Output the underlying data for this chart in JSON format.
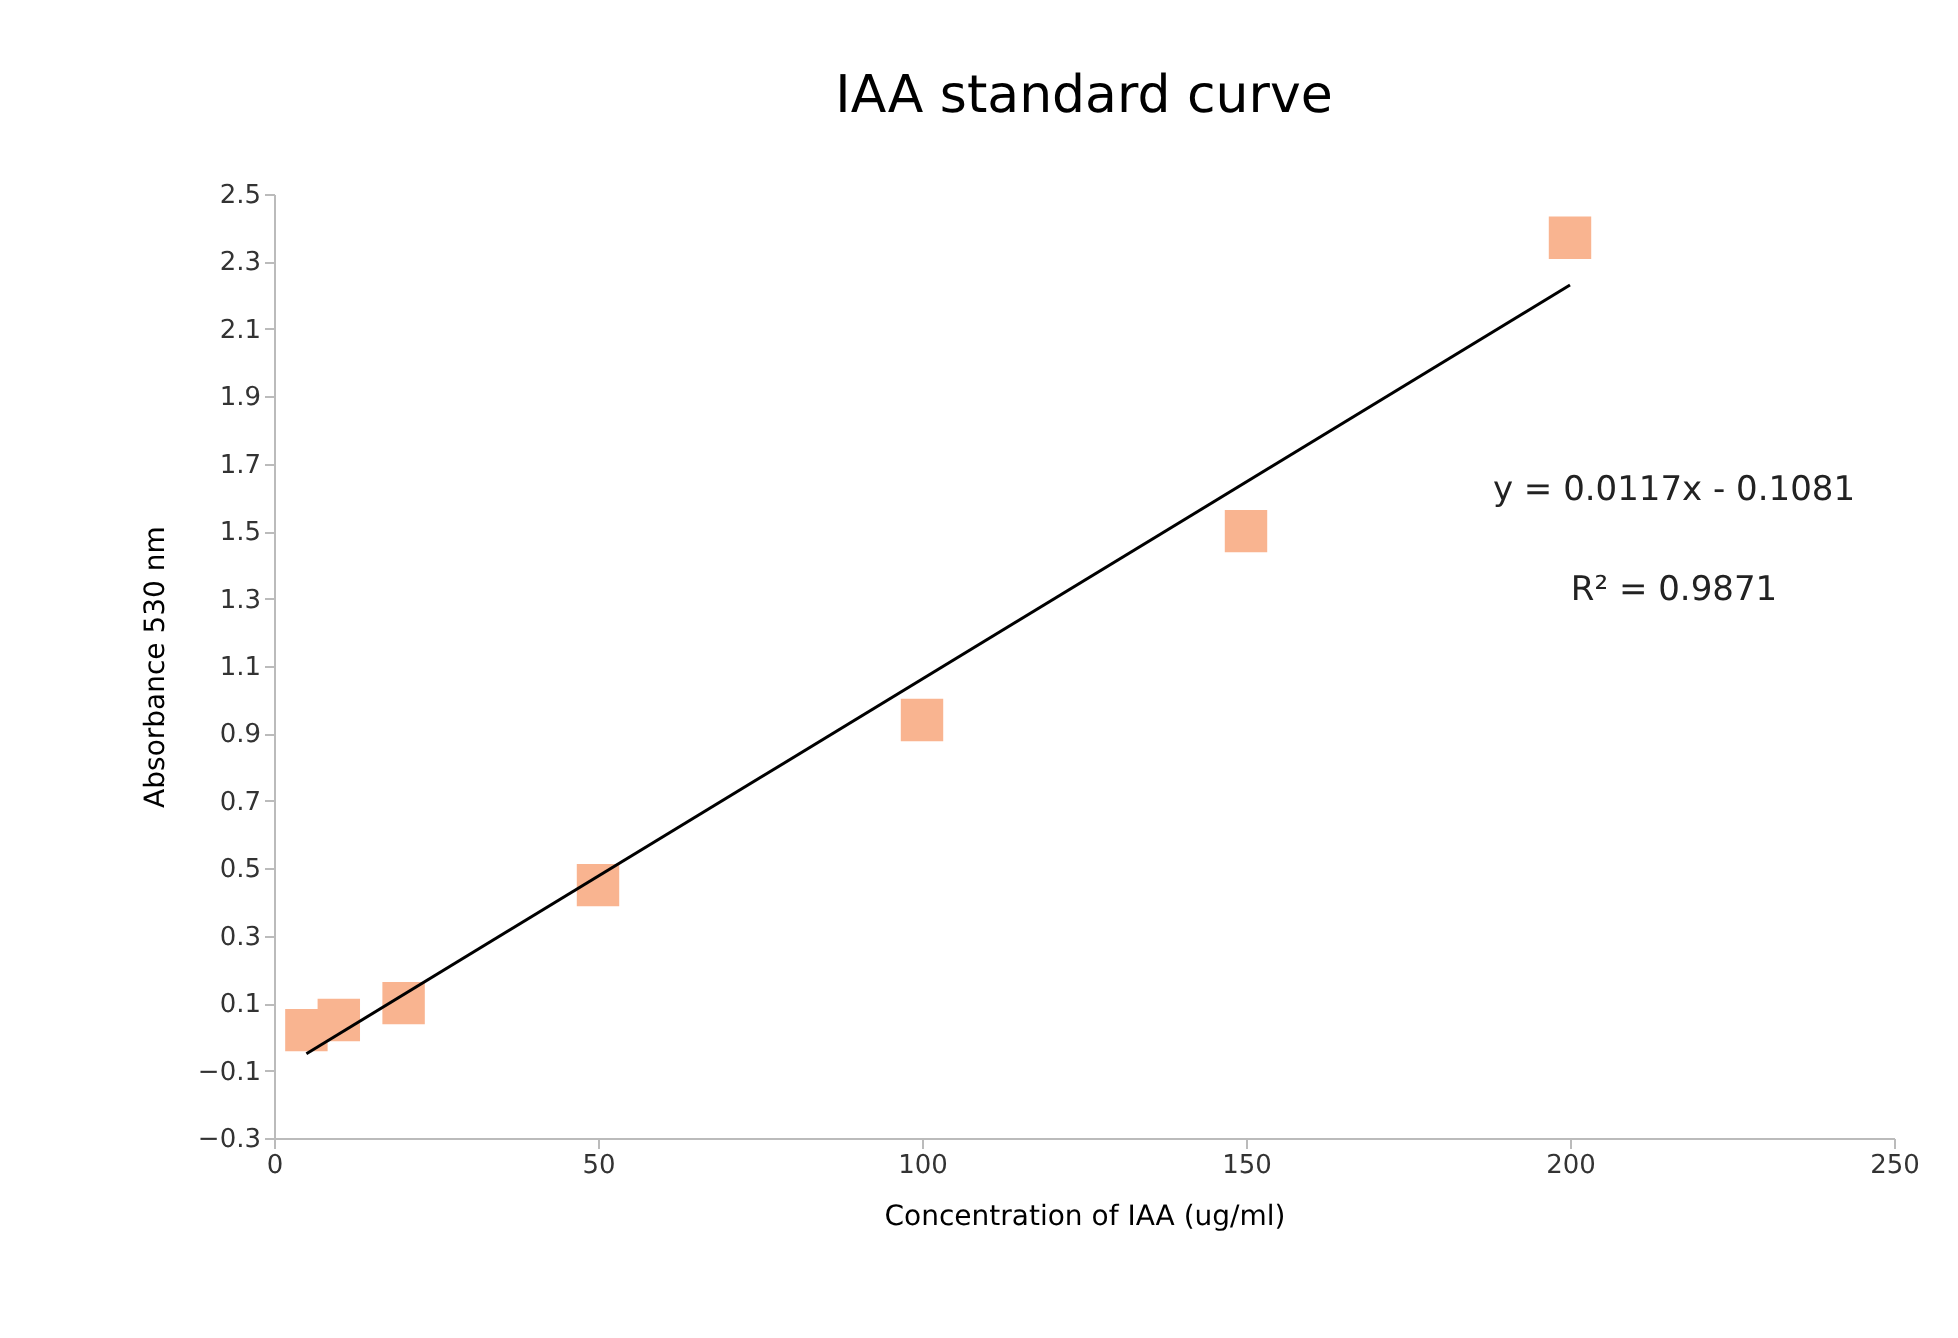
{
  "chart_data": {
    "type": "scatter",
    "title": "IAA standard curve",
    "xlabel": "Concentration of IAA (ug/ml)",
    "ylabel": "Absorbance 530 nm",
    "xlim": [
      0,
      250
    ],
    "xticks": [
      0,
      50,
      100,
      150,
      200,
      250
    ],
    "ylim": [
      -0.3,
      2.5
    ],
    "yticks": [
      -0.3,
      -0.1,
      0.1,
      0.3,
      0.5,
      0.7,
      0.9,
      1.1,
      1.3,
      1.5,
      1.7,
      1.9,
      2.1,
      2.3,
      2.5
    ],
    "marker": "square",
    "grid": false,
    "series": [
      {
        "color": "#f9b490",
        "x": [
          5,
          10,
          20,
          50,
          100,
          150,
          200
        ],
        "values": [
          0.02,
          0.05,
          0.1,
          0.45,
          0.94,
          1.5,
          2.37
        ]
      },
      {
        "type": "line",
        "marker": "none",
        "color": "#000000",
        "x": [
          5,
          200
        ],
        "values": [
          -0.05,
          2.23
        ]
      }
    ],
    "annotations": [
      "y = 0.0117x - 0.1081",
      "R² = 0.9871"
    ]
  }
}
